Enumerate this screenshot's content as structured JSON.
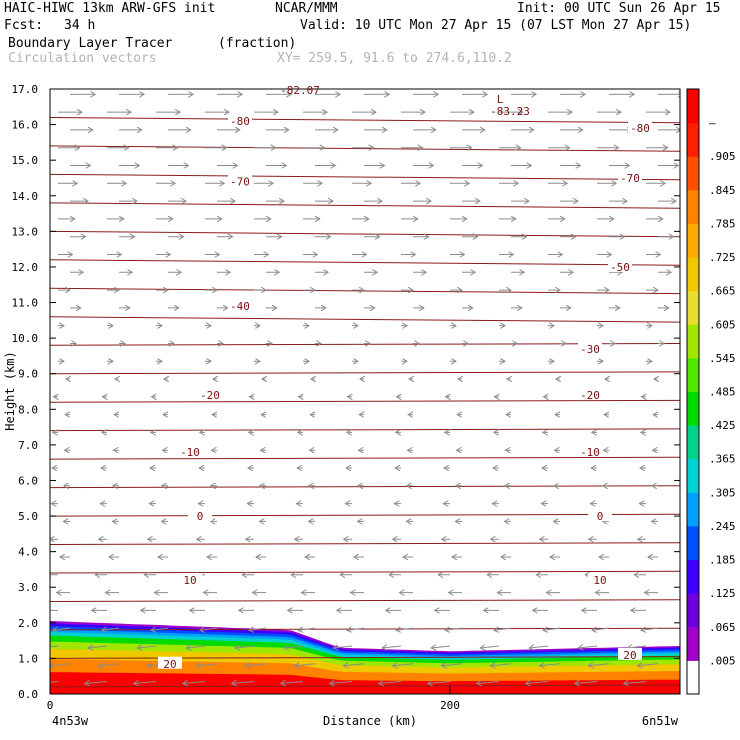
{
  "header": {
    "model": "HAIC-HIWC 13km ARW-GFS init",
    "org": "NCAR/MMM",
    "init": "Init: 00 UTC Sun 26 Apr 15",
    "fcst_label": "Fcst:",
    "fcst_value": "34 h",
    "valid": "Valid: 10 UTC Mon 27 Apr 15 (07 LST Mon 27 Apr 15)",
    "field": "Boundary Layer Tracer",
    "units": "(fraction)",
    "overlay": "Circulation vectors",
    "xy": "XY= 259.5, 91.6 to 274.6,110.2"
  },
  "chart_data": {
    "type": "heatmap",
    "ylabel": "Height (km)",
    "xlabel": "Distance (km)",
    "x_left_label": "4n53w",
    "x_right_label": "6n51w",
    "x_ticks": [
      0,
      200
    ],
    "xlim": [
      0,
      315
    ],
    "ylim": [
      0,
      17
    ],
    "y_ticks": [
      "0.0",
      "1.0",
      "2.0",
      "3.0",
      "4.0",
      "5.0",
      "6.0",
      "7.0",
      "8.0",
      "9.0",
      "10.0",
      "11.0",
      "12.0",
      "13.0",
      "14.0",
      "15.0",
      "16.0",
      "17.0"
    ],
    "colorbar_labels": [
      ".005",
      ".065",
      ".125",
      ".185",
      ".245",
      ".305",
      ".365",
      ".425",
      ".485",
      ".545",
      ".605",
      ".665",
      ".725",
      ".785",
      ".845",
      ".905",
      "–"
    ],
    "colorbar_colors": [
      "#ffffff",
      "#a000c8",
      "#6e00dc",
      "#3c00ff",
      "#0050ff",
      "#00a0ff",
      "#00d2d2",
      "#00d28c",
      "#00dc00",
      "#50e600",
      "#a0e600",
      "#e6dc32",
      "#f0c800",
      "#faaa00",
      "#ff8200",
      "#ff5000",
      "#ff1e00",
      "#fa0000"
    ],
    "boundary_top_km": [
      [
        0,
        2.05
      ],
      [
        120,
        1.8
      ],
      [
        145,
        1.3
      ],
      [
        200,
        1.2
      ],
      [
        315,
        1.35
      ]
    ],
    "contour_labels": [
      {
        "text": "-80",
        "x": 95,
        "y": 16.1
      },
      {
        "text": "-80",
        "x": 295,
        "y": 15.9
      },
      {
        "text": "-70",
        "x": 95,
        "y": 14.4
      },
      {
        "text": "-70",
        "x": 290,
        "y": 14.5
      },
      {
        "text": "-50",
        "x": 285,
        "y": 12.0
      },
      {
        "text": "-40",
        "x": 95,
        "y": 10.9
      },
      {
        "text": "-30",
        "x": 270,
        "y": 9.7
      },
      {
        "text": "-20",
        "x": 80,
        "y": 8.4
      },
      {
        "text": "-20",
        "x": 270,
        "y": 8.4
      },
      {
        "text": "-10",
        "x": 70,
        "y": 6.8
      },
      {
        "text": "-10",
        "x": 270,
        "y": 6.8
      },
      {
        "text": "0",
        "x": 75,
        "y": 5.0
      },
      {
        "text": "0",
        "x": 275,
        "y": 5.0
      },
      {
        "text": "10",
        "x": 70,
        "y": 3.2
      },
      {
        "text": "10",
        "x": 275,
        "y": 3.2
      },
      {
        "text": "20",
        "x": 60,
        "y": 0.85
      },
      {
        "text": "20",
        "x": 290,
        "y": 1.1
      }
    ],
    "low_marker": {
      "text": "L",
      "value": "-83.23",
      "x": 225,
      "y": 16.6
    },
    "top_partial_label": {
      "text": "-82.07",
      "x": 125,
      "y": 17.0
    }
  }
}
